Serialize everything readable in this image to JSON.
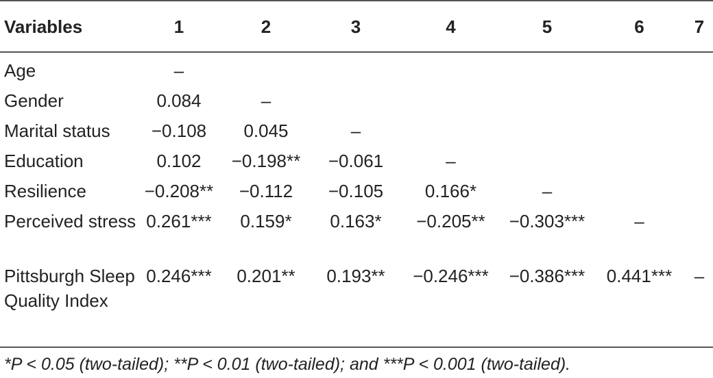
{
  "table": {
    "headers": [
      "Variables",
      "1",
      "2",
      "3",
      "4",
      "5",
      "6",
      "7"
    ],
    "rows": [
      {
        "label": "Age",
        "cells": [
          "–",
          "",
          "",
          "",
          "",
          "",
          ""
        ]
      },
      {
        "label": "Gender",
        "cells": [
          "0.084",
          "–",
          "",
          "",
          "",
          "",
          ""
        ]
      },
      {
        "label": "Marital status",
        "cells": [
          "−0.108",
          "0.045",
          "–",
          "",
          "",
          "",
          ""
        ]
      },
      {
        "label": "Education",
        "cells": [
          "0.102",
          "−0.198**",
          "−0.061",
          "–",
          "",
          "",
          ""
        ]
      },
      {
        "label": "Resilience",
        "cells": [
          "−0.208**",
          "−0.112",
          "−0.105",
          "0.166*",
          "–",
          "",
          ""
        ]
      },
      {
        "label": "Perceived stress",
        "cells": [
          "0.261***",
          "0.159*",
          "0.163*",
          "−0.205**",
          "−0.303***",
          "–",
          ""
        ]
      },
      {
        "label": "Pittsburgh Sleep Quality Index",
        "cells": [
          "0.246***",
          "0.201**",
          "0.193**",
          "−0.246***",
          "−0.386***",
          "0.441***",
          "–"
        ]
      }
    ]
  },
  "footnote": "*P < 0.05 (two-tailed); **P < 0.01 (two-tailed); and ***P < 0.001 (two-tailed)."
}
